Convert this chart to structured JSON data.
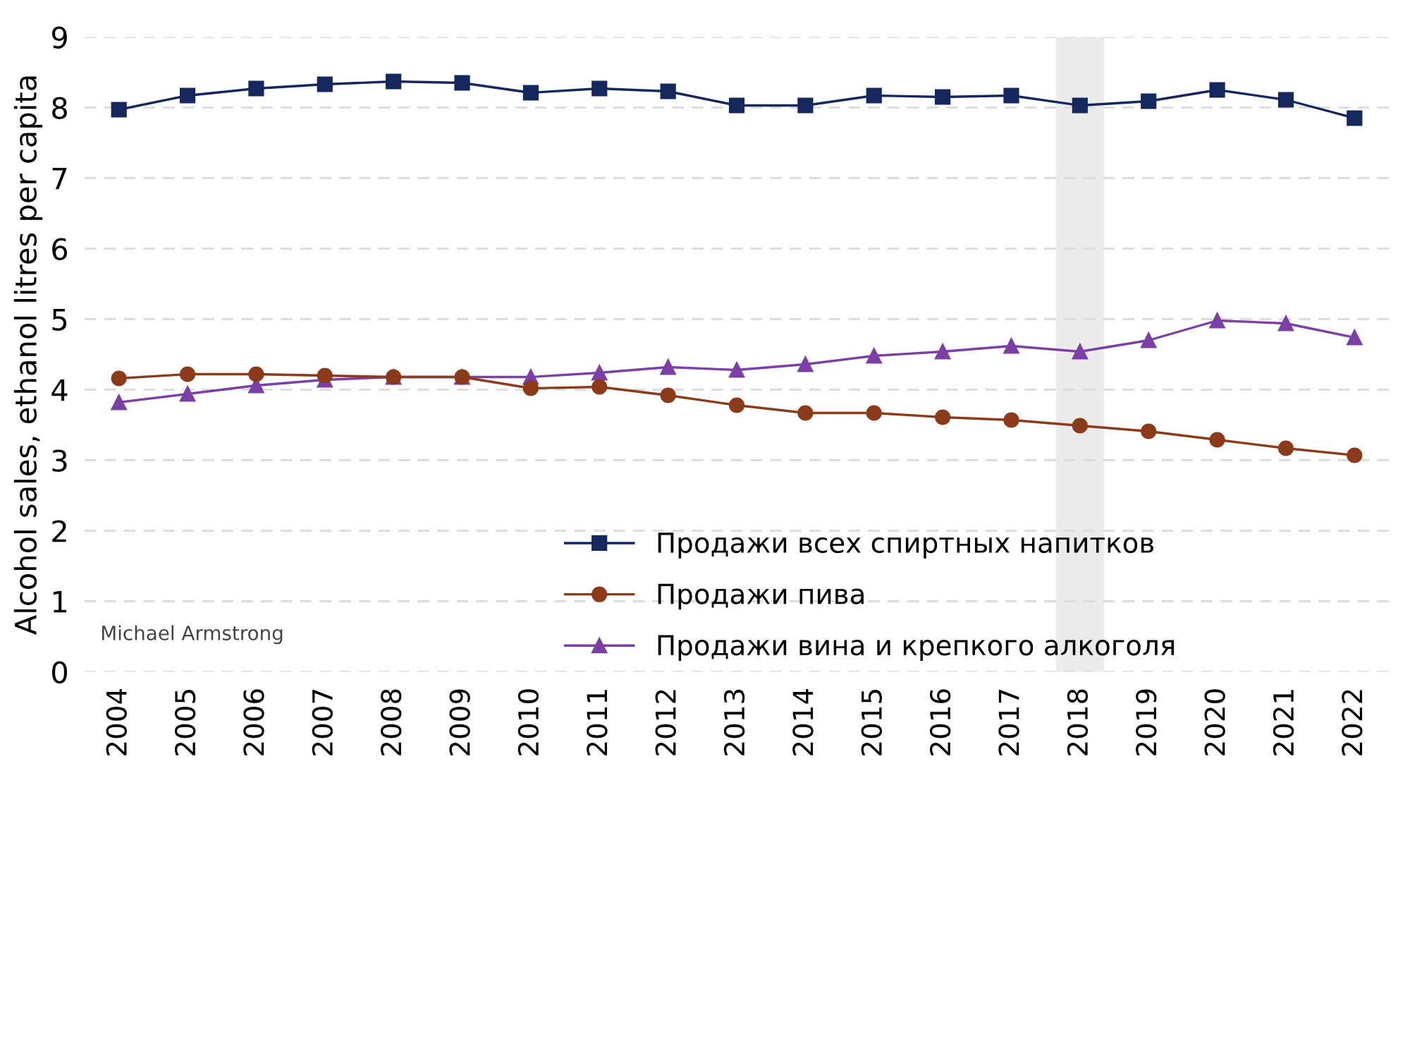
{
  "chart_data": {
    "type": "line",
    "ylabel": "Alcohol sales, ethanol litres per capita",
    "x": [
      2004,
      2005,
      2006,
      2007,
      2008,
      2009,
      2010,
      2011,
      2012,
      2013,
      2014,
      2015,
      2016,
      2017,
      2018,
      2019,
      2020,
      2021,
      2022
    ],
    "series": [
      {
        "name": "Продажи всех спиртных напитков",
        "color": "#14285e",
        "marker": "square",
        "values": [
          7.97,
          8.17,
          8.27,
          8.33,
          8.37,
          8.35,
          8.21,
          8.27,
          8.23,
          8.03,
          8.03,
          8.17,
          8.15,
          8.17,
          8.03,
          8.09,
          8.25,
          8.11,
          7.85
        ]
      },
      {
        "name": "Продажи пива",
        "color": "#8b3a1a",
        "marker": "circle",
        "values": [
          4.16,
          4.22,
          4.22,
          4.2,
          4.18,
          4.18,
          4.02,
          4.04,
          3.92,
          3.78,
          3.67,
          3.67,
          3.61,
          3.57,
          3.49,
          3.41,
          3.29,
          3.17,
          3.07
        ]
      },
      {
        "name": "Продажи вина и крепкого алкоголя",
        "color": "#7b3fa6",
        "marker": "triangle",
        "values": [
          3.82,
          3.94,
          4.06,
          4.14,
          4.18,
          4.18,
          4.18,
          4.24,
          4.32,
          4.28,
          4.36,
          4.48,
          4.54,
          4.62,
          4.54,
          4.7,
          4.98,
          4.94,
          4.74
        ]
      }
    ],
    "xlim": [
      2003.5,
      2022.5
    ],
    "xticks": [
      2004,
      2005,
      2006,
      2007,
      2008,
      2009,
      2010,
      2011,
      2012,
      2013,
      2014,
      2015,
      2016,
      2017,
      2018,
      2019,
      2020,
      2021,
      2022
    ],
    "ylim": [
      0,
      9
    ],
    "yticks": [
      0,
      1,
      2,
      3,
      4,
      5,
      6,
      7,
      8,
      9
    ],
    "bands": [
      {
        "axis": "x",
        "from": 2017.65,
        "to": 2018.35,
        "color": "#ebebeb"
      }
    ],
    "grid": "y",
    "legend": "bottom right",
    "line_style": "solid",
    "annotations": [
      {
        "text": "Michael Armstrong"
      }
    ]
  }
}
